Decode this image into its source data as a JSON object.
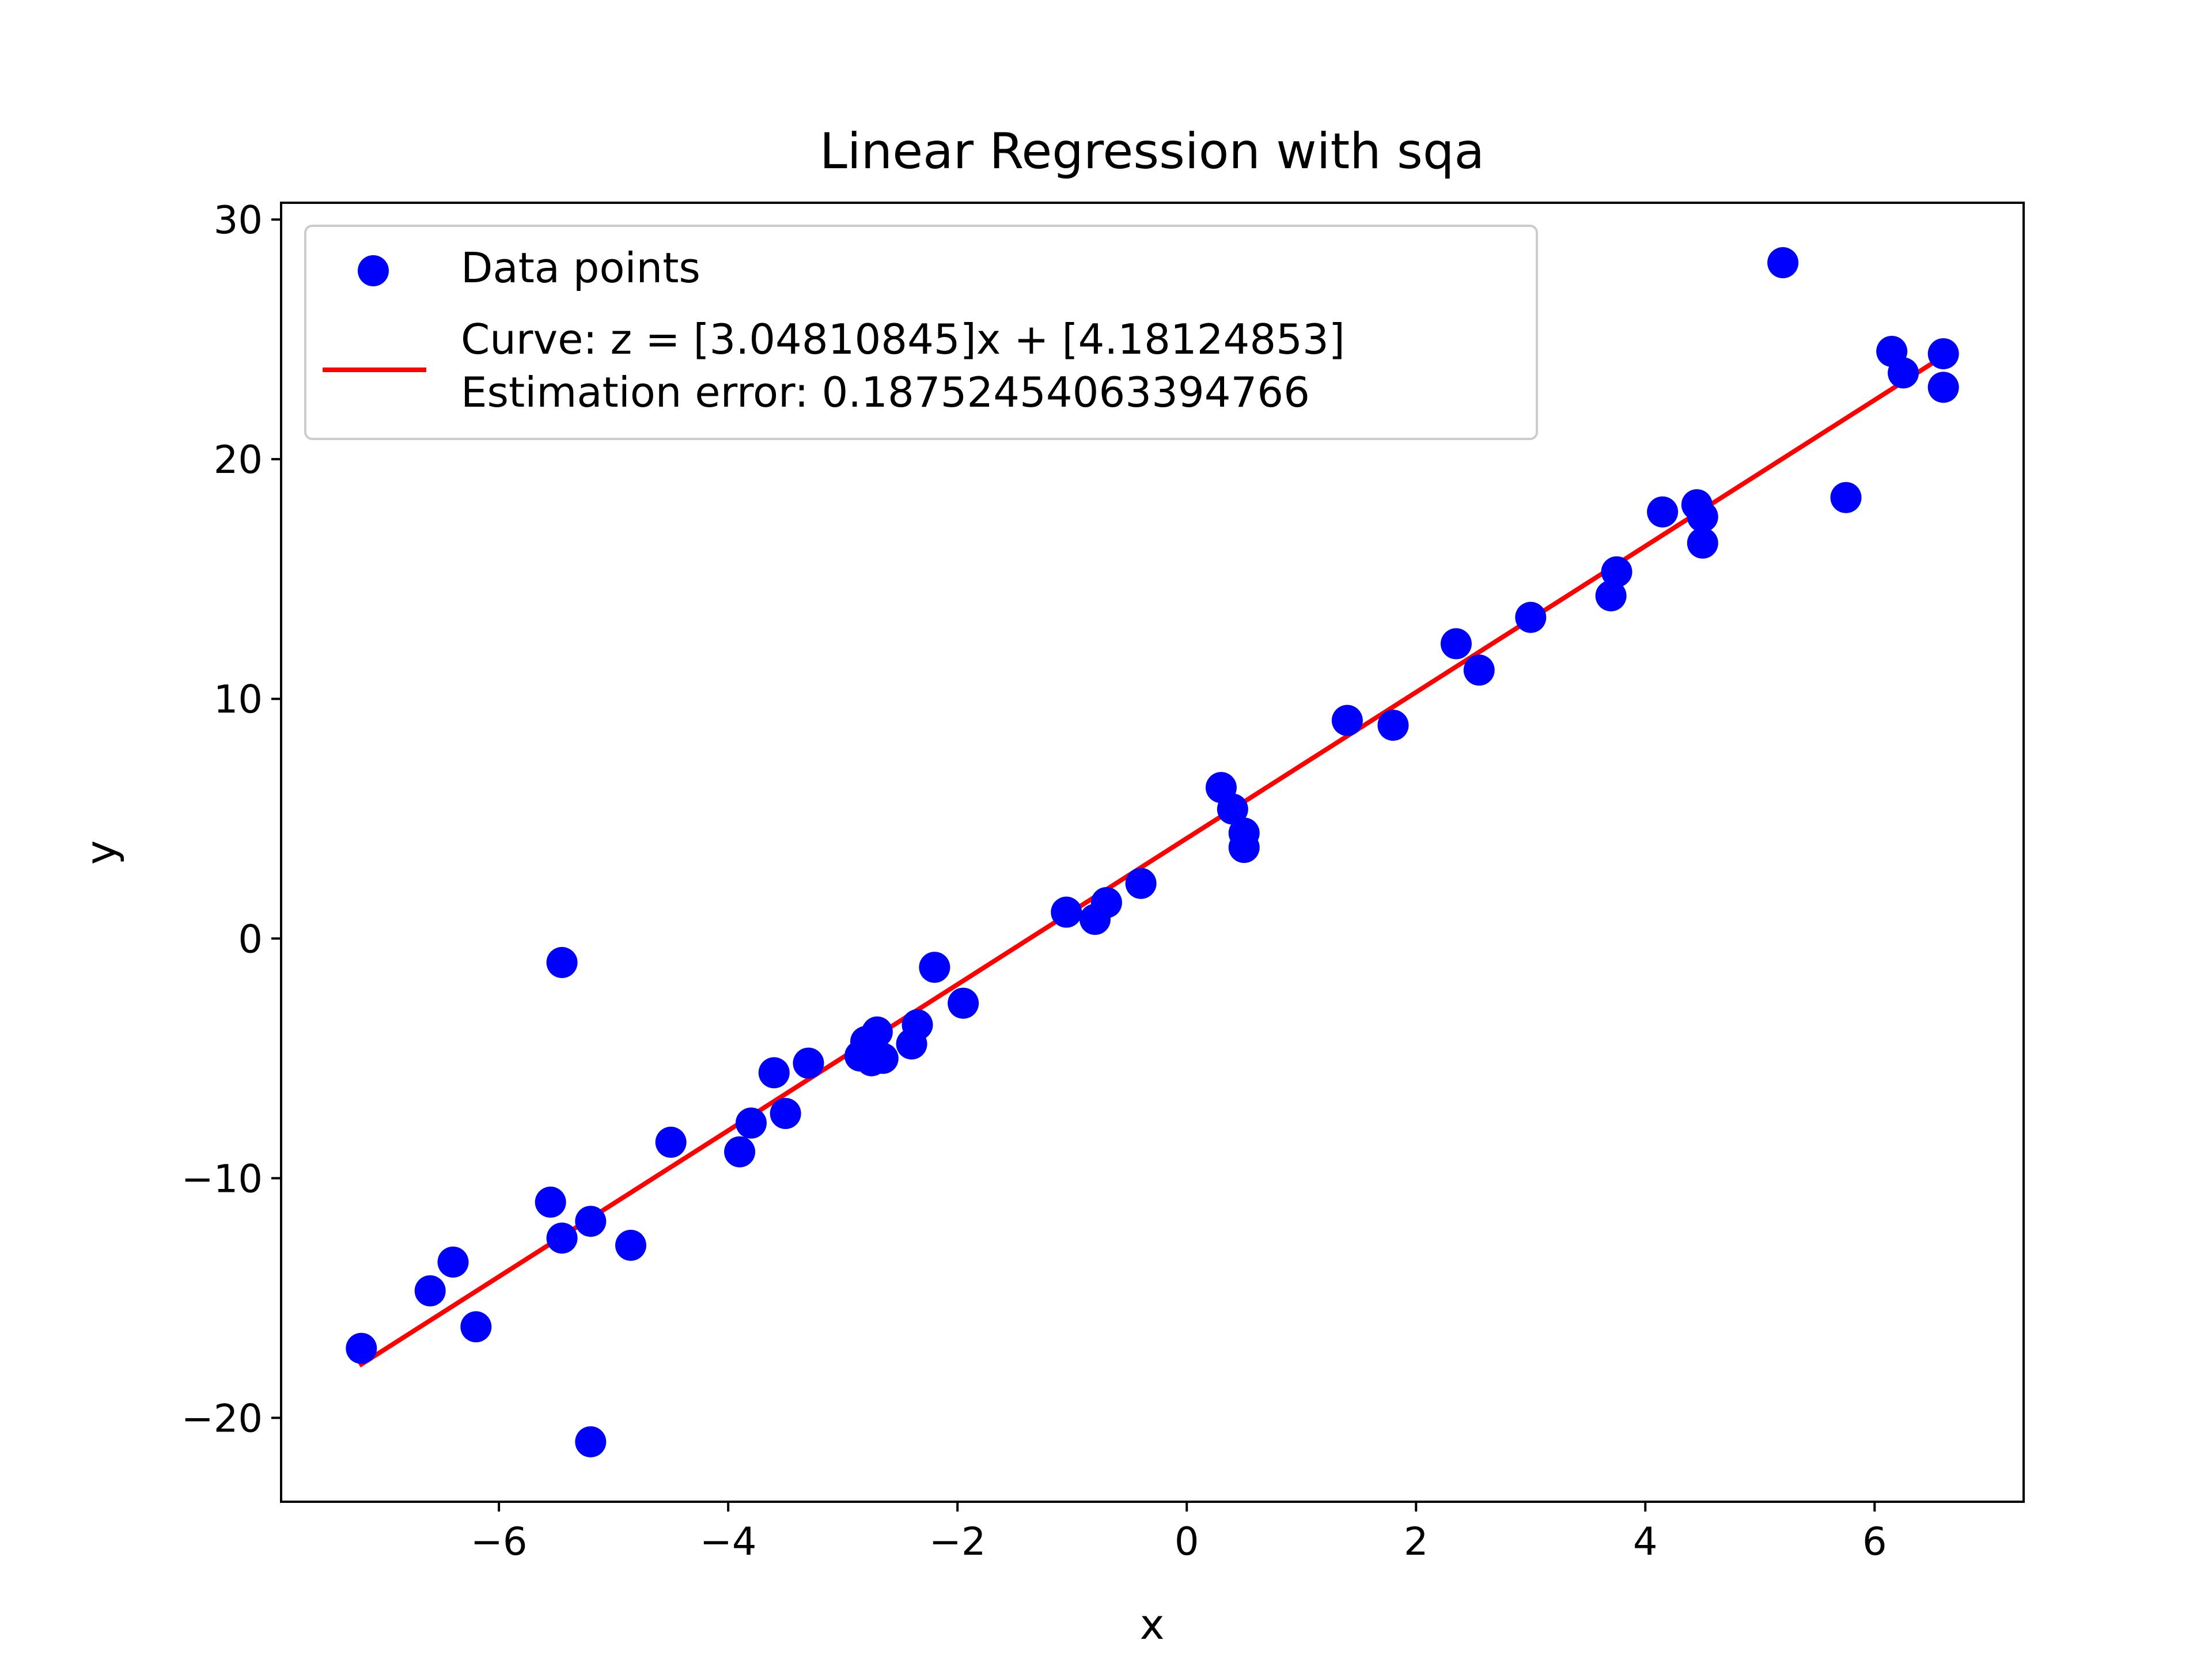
{
  "chart_data": {
    "type": "scatter",
    "title": "Linear Regression with sqa",
    "xlabel": "x",
    "ylabel": "y",
    "xlim": [
      -7.9,
      7.3
    ],
    "ylim": [
      -23.5,
      30.7
    ],
    "xticks": [
      -6,
      -4,
      -2,
      0,
      2,
      4,
      6
    ],
    "xtick_labels": [
      "−6",
      "−4",
      "−2",
      "0",
      "2",
      "4",
      "6"
    ],
    "yticks": [
      -20,
      -10,
      0,
      10,
      20,
      30
    ],
    "ytick_labels": [
      "−20",
      "−10",
      "0",
      "10",
      "20",
      "30"
    ],
    "grid": false,
    "legend_position": "top-left",
    "series": [
      {
        "name": "Data points",
        "kind": "scatter",
        "color": "#0000ff",
        "points": [
          [
            -7.2,
            -17.1
          ],
          [
            -6.6,
            -14.7
          ],
          [
            -6.4,
            -13.5
          ],
          [
            -6.2,
            -16.2
          ],
          [
            -5.55,
            -11.0
          ],
          [
            -5.45,
            -12.5
          ],
          [
            -5.45,
            -1.0
          ],
          [
            -5.2,
            -11.8
          ],
          [
            -5.2,
            -21.0
          ],
          [
            -4.85,
            -12.8
          ],
          [
            -4.5,
            -8.5
          ],
          [
            -3.9,
            -8.9
          ],
          [
            -3.8,
            -7.7
          ],
          [
            -3.6,
            -5.6
          ],
          [
            -3.5,
            -7.3
          ],
          [
            -3.3,
            -5.2
          ],
          [
            -2.85,
            -4.9
          ],
          [
            -2.8,
            -4.3
          ],
          [
            -2.75,
            -5.1
          ],
          [
            -2.7,
            -3.9
          ],
          [
            -2.65,
            -5.0
          ],
          [
            -2.4,
            -4.4
          ],
          [
            -2.35,
            -3.6
          ],
          [
            -2.2,
            -1.2
          ],
          [
            -1.95,
            -2.7
          ],
          [
            -1.05,
            1.1
          ],
          [
            -0.8,
            0.8
          ],
          [
            -0.7,
            1.5
          ],
          [
            -0.4,
            2.3
          ],
          [
            0.3,
            6.3
          ],
          [
            0.4,
            5.4
          ],
          [
            0.5,
            4.4
          ],
          [
            0.5,
            3.8
          ],
          [
            1.4,
            9.1
          ],
          [
            1.8,
            8.9
          ],
          [
            2.35,
            12.3
          ],
          [
            2.55,
            11.2
          ],
          [
            3.0,
            13.4
          ],
          [
            3.7,
            14.3
          ],
          [
            3.75,
            15.3
          ],
          [
            4.15,
            17.8
          ],
          [
            4.45,
            18.1
          ],
          [
            4.5,
            17.6
          ],
          [
            4.5,
            16.5
          ],
          [
            5.2,
            28.2
          ],
          [
            5.75,
            18.4
          ],
          [
            6.15,
            24.5
          ],
          [
            6.25,
            23.6
          ],
          [
            6.6,
            24.4
          ],
          [
            6.6,
            23.0
          ]
        ]
      },
      {
        "name": "Curve: z = [3.04810845]x + [4.18124853]\nEstimation error: 0.18752454063394766",
        "kind": "line",
        "color": "#ff0000",
        "slope": 3.04810845,
        "intercept": 4.18124853,
        "x_range": [
          -7.2,
          6.6
        ]
      }
    ],
    "legend": {
      "entries": [
        {
          "marker": "circle",
          "color": "#0000ff",
          "label_lines": [
            "Data points"
          ]
        },
        {
          "marker": "line",
          "color": "#ff0000",
          "label_lines": [
            "Curve: z = [3.04810845]x + [4.18124853]",
            "Estimation error: 0.18752454063394766"
          ]
        }
      ]
    }
  }
}
